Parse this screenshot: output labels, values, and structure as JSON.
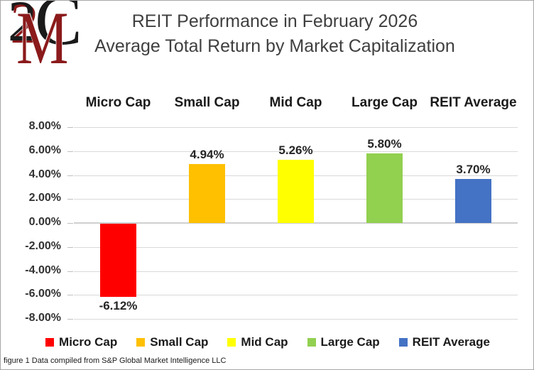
{
  "logo": {
    "char1": "2",
    "char2": "M",
    "char3": "C",
    "color_dark": "#1a1a1a",
    "color_maroon": "#8b1a1b"
  },
  "chart_data": {
    "type": "bar",
    "title": "REIT Performance in February 2026",
    "subtitle": "Average Total Return by Market Capitalization",
    "categories": [
      "Micro Cap",
      "Small Cap",
      "Mid Cap",
      "Large Cap",
      "REIT Average"
    ],
    "values": [
      -6.12,
      4.94,
      5.26,
      5.8,
      3.7
    ],
    "value_labels": [
      "-6.12%",
      "4.94%",
      "5.26%",
      "5.80%",
      "3.70%"
    ],
    "bar_colors": [
      "#FF0000",
      "#FFC000",
      "#FFFF00",
      "#92D050",
      "#4472C4"
    ],
    "ylim": [
      -8,
      8
    ],
    "ytick_step": 2,
    "ytick_labels": [
      "8.00%",
      "6.00%",
      "4.00%",
      "2.00%",
      "0.00%",
      "-2.00%",
      "-4.00%",
      "-6.00%",
      "-8.00%"
    ],
    "grid": true,
    "gridline_color": "#d9d9d9",
    "legend_position": "bottom"
  },
  "footer": {
    "text": "figure 1 Data compiled from S&P Global Market Intelligence LLC"
  }
}
